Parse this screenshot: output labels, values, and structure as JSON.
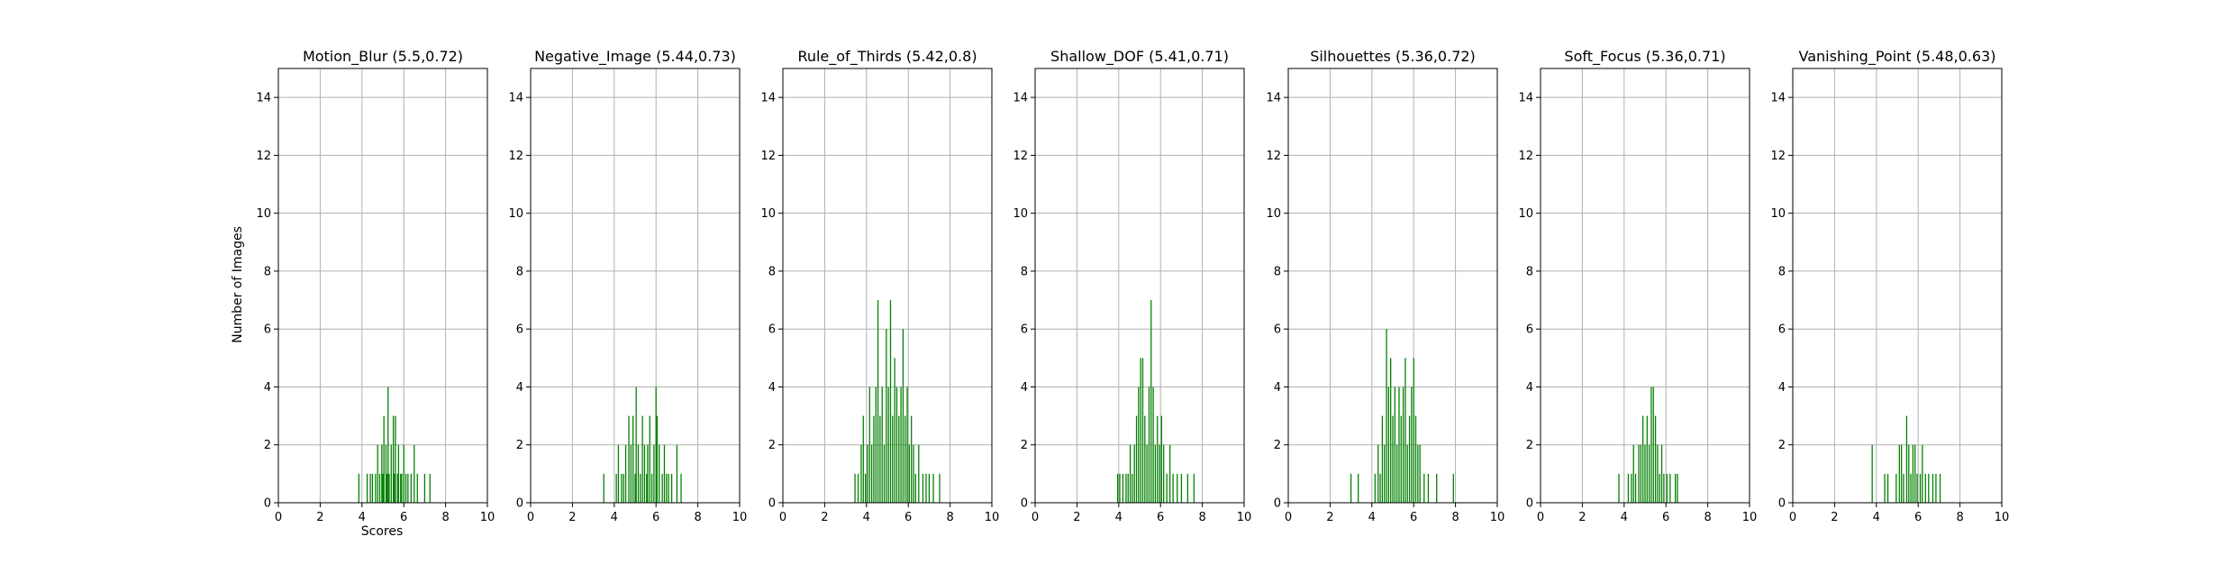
{
  "figure": {
    "ylabel": "Number of Images",
    "xlabel": "Scores",
    "bar_color": "#008000",
    "grid_color": "#b0b0b0"
  },
  "chart_data": [
    {
      "type": "bar",
      "title": "Motion_Blur (5.5,0.72)",
      "xlim": [
        0,
        10
      ],
      "ylim": [
        0,
        15
      ],
      "xticks": [
        "0",
        "2",
        "4",
        "6",
        "8",
        "10"
      ],
      "yticks": [
        "0",
        "2",
        "4",
        "6",
        "8",
        "10",
        "12",
        "14"
      ],
      "grid": true,
      "x": [
        3.85,
        4.25,
        4.4,
        4.5,
        4.65,
        4.75,
        4.85,
        4.95,
        5.0,
        5.05,
        5.15,
        5.2,
        5.25,
        5.3,
        5.4,
        5.5,
        5.55,
        5.6,
        5.7,
        5.75,
        5.85,
        5.9,
        6.0,
        6.1,
        6.2,
        6.35,
        6.5,
        6.65,
        7.0,
        7.25
      ],
      "values": [
        1,
        1,
        1,
        1,
        1,
        2,
        1,
        2,
        1,
        3,
        2,
        1,
        4,
        1,
        2,
        3,
        1,
        3,
        1,
        2,
        1,
        1,
        2,
        1,
        1,
        1,
        2,
        1,
        1,
        1
      ]
    },
    {
      "type": "bar",
      "title": "Negative_Image (5.44,0.73)",
      "xlim": [
        0,
        10
      ],
      "ylim": [
        0,
        15
      ],
      "xticks": [
        "0",
        "2",
        "4",
        "6",
        "8",
        "10"
      ],
      "yticks": [
        "0",
        "2",
        "4",
        "6",
        "8",
        "10",
        "12",
        "14"
      ],
      "grid": true,
      "x": [
        3.5,
        4.1,
        4.2,
        4.35,
        4.45,
        4.55,
        4.7,
        4.8,
        4.9,
        5.0,
        5.05,
        5.15,
        5.25,
        5.35,
        5.45,
        5.55,
        5.6,
        5.7,
        5.8,
        5.9,
        6.0,
        6.05,
        6.15,
        6.3,
        6.4,
        6.5,
        6.6,
        6.75,
        7.0,
        7.2
      ],
      "values": [
        1,
        1,
        2,
        1,
        1,
        2,
        3,
        2,
        3,
        1,
        4,
        2,
        1,
        3,
        2,
        1,
        2,
        3,
        1,
        2,
        4,
        3,
        2,
        1,
        2,
        1,
        1,
        1,
        2,
        1
      ]
    },
    {
      "type": "bar",
      "title": "Rule_of_Thirds (5.42,0.8)",
      "xlim": [
        0,
        10
      ],
      "ylim": [
        0,
        15
      ],
      "xticks": [
        "0",
        "2",
        "4",
        "6",
        "8",
        "10"
      ],
      "yticks": [
        "0",
        "2",
        "4",
        "6",
        "8",
        "10",
        "12",
        "14"
      ],
      "grid": true,
      "x": [
        3.45,
        3.6,
        3.75,
        3.85,
        3.95,
        4.05,
        4.15,
        4.25,
        4.35,
        4.45,
        4.55,
        4.65,
        4.75,
        4.85,
        4.95,
        5.05,
        5.15,
        5.25,
        5.35,
        5.45,
        5.55,
        5.65,
        5.75,
        5.85,
        5.95,
        6.05,
        6.15,
        6.25,
        6.35,
        6.5,
        6.7,
        6.85,
        7.0,
        7.2,
        7.5
      ],
      "values": [
        1,
        1,
        2,
        3,
        1,
        2,
        4,
        2,
        3,
        4,
        7,
        3,
        4,
        2,
        6,
        4,
        7,
        3,
        5,
        4,
        3,
        4,
        6,
        3,
        4,
        2,
        3,
        2,
        1,
        2,
        1,
        1,
        1,
        1,
        1
      ]
    },
    {
      "type": "bar",
      "title": "Shallow_DOF (5.41,0.71)",
      "xlim": [
        0,
        10
      ],
      "ylim": [
        0,
        15
      ],
      "xticks": [
        "0",
        "2",
        "4",
        "6",
        "8",
        "10"
      ],
      "yticks": [
        "0",
        "2",
        "4",
        "6",
        "8",
        "10",
        "12",
        "14"
      ],
      "grid": true,
      "x": [
        3.95,
        4.05,
        4.2,
        4.35,
        4.45,
        4.55,
        4.65,
        4.75,
        4.85,
        4.95,
        5.05,
        5.15,
        5.25,
        5.35,
        5.45,
        5.55,
        5.65,
        5.75,
        5.85,
        5.95,
        6.05,
        6.15,
        6.3,
        6.45,
        6.6,
        6.8,
        7.0,
        7.3,
        7.6
      ],
      "values": [
        1,
        1,
        1,
        1,
        1,
        2,
        1,
        2,
        3,
        4,
        5,
        5,
        3,
        2,
        4,
        7,
        4,
        2,
        3,
        2,
        3,
        2,
        1,
        2,
        1,
        1,
        1,
        1,
        1
      ]
    },
    {
      "type": "bar",
      "title": "Silhouettes (5.36,0.72)",
      "xlim": [
        0,
        10
      ],
      "ylim": [
        0,
        15
      ],
      "xticks": [
        "0",
        "2",
        "4",
        "6",
        "8",
        "10"
      ],
      "yticks": [
        "0",
        "2",
        "4",
        "6",
        "8",
        "10",
        "12",
        "14"
      ],
      "grid": true,
      "x": [
        3.0,
        3.35,
        4.15,
        4.3,
        4.4,
        4.5,
        4.6,
        4.7,
        4.8,
        4.9,
        5.0,
        5.1,
        5.2,
        5.3,
        5.4,
        5.5,
        5.6,
        5.7,
        5.8,
        5.9,
        6.0,
        6.1,
        6.2,
        6.3,
        6.5,
        6.7,
        7.1,
        7.9
      ],
      "values": [
        1,
        1,
        1,
        2,
        1,
        3,
        2,
        6,
        4,
        5,
        3,
        4,
        2,
        4,
        3,
        4,
        5,
        2,
        3,
        4,
        5,
        3,
        2,
        2,
        1,
        1,
        1,
        1
      ]
    },
    {
      "type": "bar",
      "title": "Soft_Focus (5.36,0.71)",
      "xlim": [
        0,
        10
      ],
      "ylim": [
        0,
        15
      ],
      "xticks": [
        "0",
        "2",
        "4",
        "6",
        "8",
        "10"
      ],
      "yticks": [
        "0",
        "2",
        "4",
        "6",
        "8",
        "10",
        "12",
        "14"
      ],
      "grid": true,
      "x": [
        3.75,
        4.2,
        4.35,
        4.45,
        4.55,
        4.7,
        4.8,
        4.9,
        5.0,
        5.1,
        5.2,
        5.3,
        5.4,
        5.5,
        5.6,
        5.7,
        5.8,
        5.9,
        6.05,
        6.2,
        6.45,
        6.55
      ],
      "values": [
        1,
        1,
        1,
        2,
        1,
        2,
        2,
        3,
        2,
        3,
        2,
        4,
        4,
        3,
        2,
        1,
        2,
        1,
        1,
        1,
        1,
        1
      ]
    },
    {
      "type": "bar",
      "title": "Vanishing_Point (5.48,0.63)",
      "xlim": [
        0,
        10
      ],
      "ylim": [
        0,
        15
      ],
      "xticks": [
        "0",
        "2",
        "4",
        "6",
        "8",
        "10"
      ],
      "yticks": [
        "0",
        "2",
        "4",
        "6",
        "8",
        "10",
        "12",
        "14"
      ],
      "grid": true,
      "x": [
        3.8,
        4.4,
        4.55,
        4.95,
        5.1,
        5.2,
        5.3,
        5.45,
        5.55,
        5.65,
        5.75,
        5.85,
        5.95,
        6.1,
        6.2,
        6.35,
        6.5,
        6.7,
        6.85,
        7.05
      ],
      "values": [
        2,
        1,
        1,
        1,
        2,
        2,
        1,
        3,
        2,
        1,
        2,
        2,
        1,
        1,
        2,
        1,
        1,
        1,
        1,
        1
      ]
    }
  ]
}
